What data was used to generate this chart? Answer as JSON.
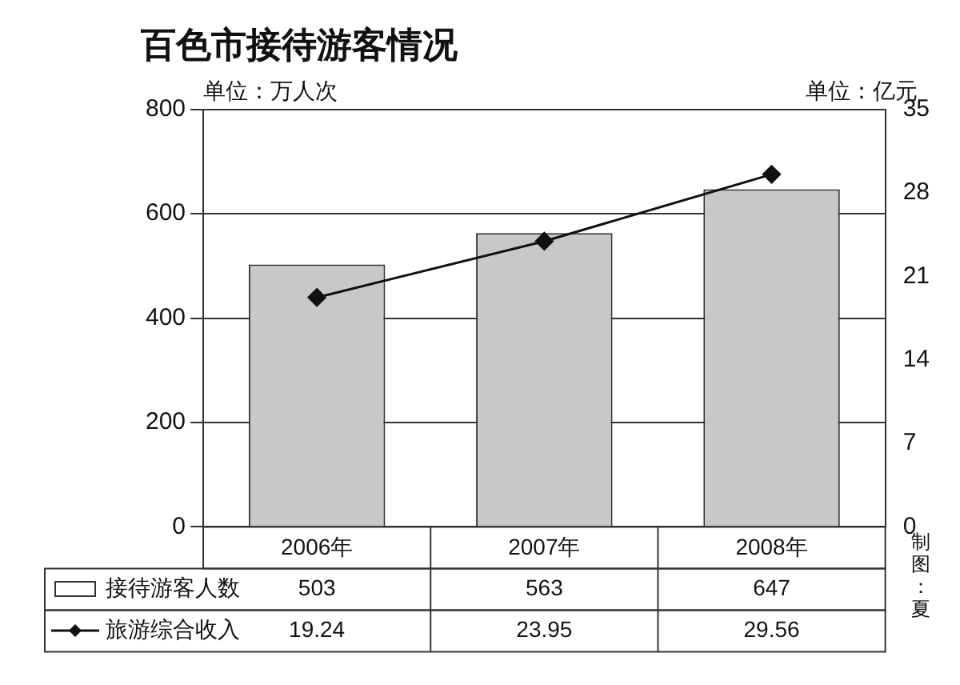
{
  "chart_data": {
    "type": "bar",
    "title": "百色市接待游客情况",
    "ylabel": "单位：万人次",
    "y2label": "单位：亿元",
    "categories": [
      "2006年",
      "2007年",
      "2008年"
    ],
    "series": [
      {
        "name": "接待游客人数",
        "color": "#c8c8c8",
        "values": [
          503,
          563,
          647
        ]
      },
      {
        "name": "旅游综合收入",
        "type": "line",
        "axis": "y2",
        "color": "#111111",
        "marker": "diamond",
        "values": [
          19.24,
          23.95,
          29.56
        ]
      }
    ],
    "ylim": [
      0,
      800
    ],
    "yticks": [
      0,
      200,
      400,
      600,
      800
    ],
    "y2lim": [
      0,
      35
    ],
    "y2ticks": [
      0,
      7,
      14,
      21,
      28,
      35
    ],
    "grid": "y",
    "legend": "bottom",
    "data_labels": true,
    "annotations": [
      "制图：夏"
    ]
  }
}
